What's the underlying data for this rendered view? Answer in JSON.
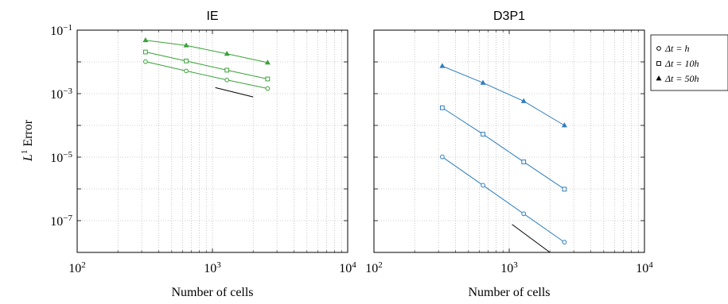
{
  "chart_data": [
    {
      "type": "line",
      "title": "IE",
      "xlabel": "Number of cells",
      "ylabel": "",
      "xscale": "log",
      "yscale": "log",
      "xlim": [
        100,
        10000
      ],
      "ylim": [
        1e-08,
        0.1
      ],
      "grid": true,
      "color": "#3aa23a",
      "xticks": [
        {
          "base": "10",
          "exp": "2",
          "v": 100
        },
        {
          "base": "10",
          "exp": "3",
          "v": 1000
        },
        {
          "base": "10",
          "exp": "4",
          "v": 10000
        }
      ],
      "yticks": [
        {
          "base": "10",
          "exp": "−1",
          "v": 0.1
        },
        {
          "base": "10",
          "exp": "−3",
          "v": 0.001
        },
        {
          "base": "10",
          "exp": "−5",
          "v": 1e-05
        },
        {
          "base": "10",
          "exp": "−7",
          "v": 1e-07
        }
      ],
      "series": [
        {
          "name": "Δt = h",
          "marker": "circle",
          "x": [
            320,
            640,
            1280,
            2560
          ],
          "y": [
            0.0102,
            0.0052,
            0.0027,
            0.00145
          ]
        },
        {
          "name": "Δt = 10h",
          "marker": "square",
          "x": [
            320,
            640,
            1280,
            2560
          ],
          "y": [
            0.0205,
            0.0107,
            0.0055,
            0.0029
          ]
        },
        {
          "name": "Δt = 50h",
          "marker": "triangle",
          "x": [
            320,
            640,
            1280,
            2560
          ],
          "y": [
            0.048,
            0.033,
            0.018,
            0.0095
          ]
        }
      ],
      "reference_line": {
        "x": [
          1050,
          2000
        ],
        "y": [
          0.00155,
          0.00079
        ]
      }
    },
    {
      "type": "line",
      "title": "D3P1",
      "xlabel": "Number of cells",
      "ylabel": "",
      "xscale": "log",
      "yscale": "log",
      "xlim": [
        100,
        10000
      ],
      "ylim": [
        1e-08,
        0.1
      ],
      "grid": true,
      "color": "#2f7dbd",
      "xticks": [
        {
          "base": "10",
          "exp": "2",
          "v": 100
        },
        {
          "base": "10",
          "exp": "3",
          "v": 1000
        },
        {
          "base": "10",
          "exp": "4",
          "v": 10000
        }
      ],
      "yticks": [],
      "series": [
        {
          "name": "Δt = h",
          "marker": "circle",
          "x": [
            320,
            640,
            1280,
            2560
          ],
          "y": [
            1.02e-05,
            1.3e-06,
            1.65e-07,
            2.1e-08
          ]
        },
        {
          "name": "Δt = 10h",
          "marker": "square",
          "x": [
            320,
            640,
            1280,
            2560
          ],
          "y": [
            0.00036,
            5.3e-05,
            7.1e-06,
            9.8e-07
          ]
        },
        {
          "name": "Δt = 50h",
          "marker": "triangle",
          "x": [
            320,
            640,
            1280,
            2560
          ],
          "y": [
            0.0074,
            0.0022,
            0.00058,
            0.0001
          ]
        }
      ],
      "reference_line": {
        "x": [
          1050,
          2000
        ],
        "y": [
          7.6e-08,
          1e-08
        ]
      }
    }
  ],
  "shared": {
    "ylabel_base": "L",
    "ylabel_sup": "1",
    "ylabel_rest": " Error",
    "legend": [
      {
        "marker": "circle",
        "label": "Δt = h"
      },
      {
        "marker": "square",
        "label": "Δt = 10h"
      },
      {
        "marker": "triangle",
        "label": "Δt = 50h"
      }
    ],
    "legend_position": "right"
  }
}
